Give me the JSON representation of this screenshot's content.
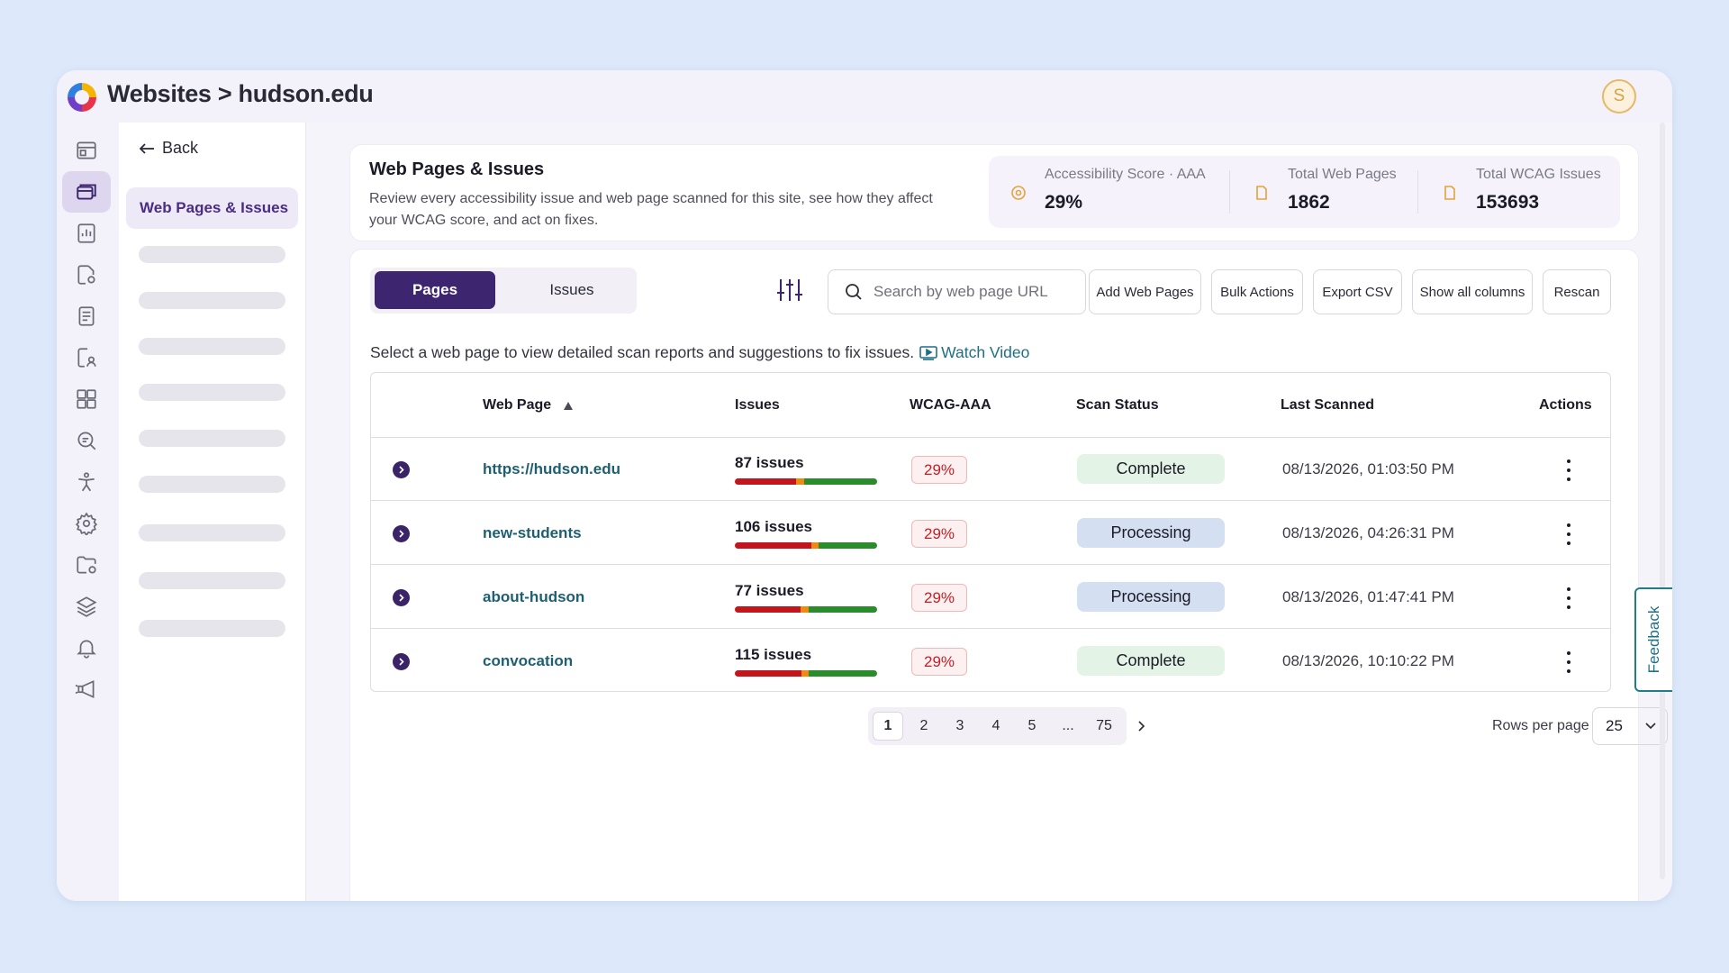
{
  "topbar": {
    "breadcrumb": "Websites > hudson.edu",
    "avatar_initial": "S"
  },
  "rail": {
    "icons": [
      "dashboard-icon",
      "web-pages-icon",
      "reports-icon",
      "document-settings-icon",
      "document-icon",
      "document-user-icon",
      "components-icon",
      "search-analytics-icon",
      "accessibility-icon",
      "settings-icon",
      "folder-settings-icon",
      "layers-icon",
      "bell-icon",
      "announcement-icon"
    ],
    "active_index": 1
  },
  "subnav": {
    "back_label": "Back",
    "active_label": "Web Pages & Issues"
  },
  "header": {
    "title": "Web Pages & Issues",
    "description": "Review every accessibility issue and web page scanned for this site, see how they affect your WCAG score, and act on fixes.",
    "stats": [
      {
        "label": "Accessibility Score · AAA",
        "value": "29%"
      },
      {
        "label": "Total Web Pages",
        "value": "1862"
      },
      {
        "label": "Total WCAG Issues",
        "value": "153693"
      }
    ]
  },
  "tabs": {
    "pages": "Pages",
    "issues": "Issues"
  },
  "search": {
    "placeholder": "Search by web page URL"
  },
  "toolbar": {
    "add_web_pages": "Add Web Pages",
    "bulk_actions": "Bulk Actions",
    "export_csv": "Export CSV",
    "show_all_columns": "Show all columns",
    "rescan": "Rescan"
  },
  "helper": {
    "text": "Select a web page to view detailed scan reports and suggestions to fix issues.",
    "watch_video": "Watch Video"
  },
  "table": {
    "headers": {
      "web_page": "Web Page",
      "issues": "Issues",
      "wcag": "WCAG-AAA",
      "scan_status": "Scan Status",
      "last_scanned": "Last Scanned",
      "actions": "Actions"
    },
    "rows": [
      {
        "page": "https://hudson.edu",
        "issues": "87 issues",
        "bar": [
          0.43,
          0.06,
          0.51
        ],
        "wcag": "29%",
        "status": "Complete",
        "status_kind": "complete",
        "last_scanned": "08/13/2026, 01:03:50 PM"
      },
      {
        "page": "new-students",
        "issues": "106 issues",
        "bar": [
          0.54,
          0.05,
          0.41
        ],
        "wcag": "29%",
        "status": "Processing",
        "status_kind": "processing",
        "last_scanned": "08/13/2026, 04:26:31 PM"
      },
      {
        "page": "about-hudson",
        "issues": "77 issues",
        "bar": [
          0.46,
          0.06,
          0.48
        ],
        "wcag": "29%",
        "status": "Processing",
        "status_kind": "processing",
        "last_scanned": "08/13/2026, 01:47:41 PM"
      },
      {
        "page": "convocation",
        "issues": "115 issues",
        "bar": [
          0.47,
          0.05,
          0.48
        ],
        "wcag": "29%",
        "status": "Complete",
        "status_kind": "complete",
        "last_scanned": "08/13/2026, 10:10:22 PM"
      }
    ]
  },
  "pagination": {
    "pages": [
      "1",
      "2",
      "3",
      "4",
      "5",
      "...",
      "75"
    ],
    "current": "1",
    "rows_per_page_label": "Rows per page",
    "rows_per_page": "25"
  },
  "feedback_label": "Feedback",
  "colors": {
    "brand": "#3e2570",
    "link": "#1d5f73",
    "bar_red": "#c3161c",
    "bar_orange": "#ee8a14",
    "bar_green": "#2b8c2c",
    "complete_bg": "#e3f3e6",
    "processing_bg": "#d4dff1"
  }
}
